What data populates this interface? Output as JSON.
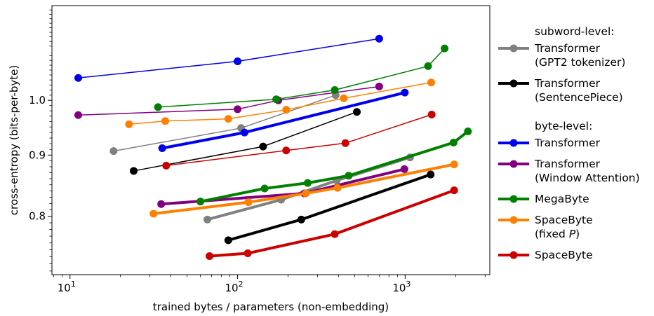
{
  "chart_data": {
    "type": "line",
    "xlabel": "trained bytes / parameters (non-embedding)",
    "ylabel": "cross-entropy (bits-per-byte)",
    "x_scale": "log",
    "y_scale": "log",
    "xlim": [
      7.8,
      3200
    ],
    "ylim": [
      0.715,
      1.2
    ],
    "x_ticks": [
      {
        "value": 10,
        "base": "10",
        "exp": "1"
      },
      {
        "value": 100,
        "base": "10",
        "exp": "2"
      },
      {
        "value": 1000,
        "base": "10",
        "exp": "3"
      }
    ],
    "y_ticks": [
      {
        "value": 0.8,
        "label": "0.8"
      },
      {
        "value": 0.9,
        "label": "0.9"
      },
      {
        "value": 1.0,
        "label": "1.0"
      }
    ],
    "legend": {
      "placement": "outside-right",
      "sections": [
        {
          "title": "subword-level:",
          "entries": [
            {
              "label": [
                "Transformer",
                "(GPT2 tokenizer)"
              ],
              "color": "#808080"
            },
            {
              "label": [
                "Transformer",
                "(SentencePiece)"
              ],
              "color": "#000000"
            }
          ]
        },
        {
          "title": "byte-level:",
          "entries": [
            {
              "label": [
                "Transformer"
              ],
              "color": "#0000ee"
            },
            {
              "label": [
                "Transformer",
                "(Window Attention)"
              ],
              "color": "#800080"
            },
            {
              "label": [
                "MegaByte"
              ],
              "color": "#008000"
            },
            {
              "label": [
                "SpaceByte",
                "(fixed P)"
              ],
              "color": "#ff8000"
            },
            {
              "label": [
                "SpaceByte"
              ],
              "color": "#cc0000"
            }
          ]
        }
      ]
    },
    "series": [
      {
        "name": "Transformer (GPT2 tokenizer)",
        "color": "#808080",
        "width": 1.5,
        "x": [
          18.2,
          105,
          385
        ],
        "y": [
          0.907,
          0.948,
          1.01
        ]
      },
      {
        "name": "Transformer (GPT2 tokenizer)",
        "color": "#808080",
        "width": 4,
        "x": [
          66,
          182,
          390,
          1070
        ],
        "y": [
          0.795,
          0.826,
          0.857,
          0.896
        ]
      },
      {
        "name": "Transformer (SentencePiece)",
        "color": "#000000",
        "width": 1.5,
        "x": [
          24,
          142,
          515
        ],
        "y": [
          0.873,
          0.915,
          0.978
        ]
      },
      {
        "name": "Transformer (SentencePiece)",
        "color": "#000000",
        "width": 4,
        "x": [
          88,
          240,
          1420
        ],
        "y": [
          0.764,
          0.795,
          0.867
        ]
      },
      {
        "name": "Transformer",
        "color": "#0000ee",
        "width": 1.5,
        "x": [
          11.2,
          100,
          700
        ],
        "y": [
          1.044,
          1.078,
          1.126
        ]
      },
      {
        "name": "Transformer",
        "color": "#0000ee",
        "width": 4,
        "x": [
          35.5,
          110,
          995
        ],
        "y": [
          0.912,
          0.94,
          1.015
        ]
      },
      {
        "name": "Transformer (Window Attention)",
        "color": "#800080",
        "width": 1.5,
        "x": [
          11.2,
          100,
          175,
          700
        ],
        "y": [
          0.972,
          0.983,
          1.0,
          1.027
        ]
      },
      {
        "name": "Transformer (Window Attention)",
        "color": "#800080",
        "width": 4,
        "x": [
          35,
          250,
          990
        ],
        "y": [
          0.819,
          0.836,
          0.876
        ]
      },
      {
        "name": "MegaByte",
        "color": "#008000",
        "width": 1.5,
        "x": [
          33.5,
          170,
          380,
          1370,
          1720
        ],
        "y": [
          0.987,
          1.002,
          1.02,
          1.068,
          1.105
        ]
      },
      {
        "name": "MegaByte",
        "color": "#008000",
        "width": 4,
        "x": [
          60,
          145,
          262,
          460,
          1945,
          2370
        ],
        "y": [
          0.823,
          0.844,
          0.853,
          0.865,
          0.922,
          0.942
        ]
      },
      {
        "name": "SpaceByte (fixed P)",
        "color": "#ff8000",
        "width": 1.5,
        "x": [
          22.5,
          37,
          88,
          195,
          430,
          1430
        ],
        "y": [
          0.955,
          0.961,
          0.965,
          0.982,
          1.004,
          1.035
        ]
      },
      {
        "name": "SpaceByte (fixed P)",
        "color": "#ff8000",
        "width": 4,
        "x": [
          31.5,
          116,
          255,
          395,
          1960
        ],
        "y": [
          0.804,
          0.822,
          0.836,
          0.845,
          0.884
        ]
      },
      {
        "name": "SpaceByte",
        "color": "#cc0000",
        "width": 1.5,
        "x": [
          37.5,
          195,
          440,
          1440
        ],
        "y": [
          0.882,
          0.908,
          0.921,
          0.973
        ]
      },
      {
        "name": "SpaceByte",
        "color": "#cc0000",
        "width": 4,
        "x": [
          68,
          115,
          380,
          1960
        ],
        "y": [
          0.741,
          0.745,
          0.773,
          0.841
        ]
      }
    ]
  }
}
